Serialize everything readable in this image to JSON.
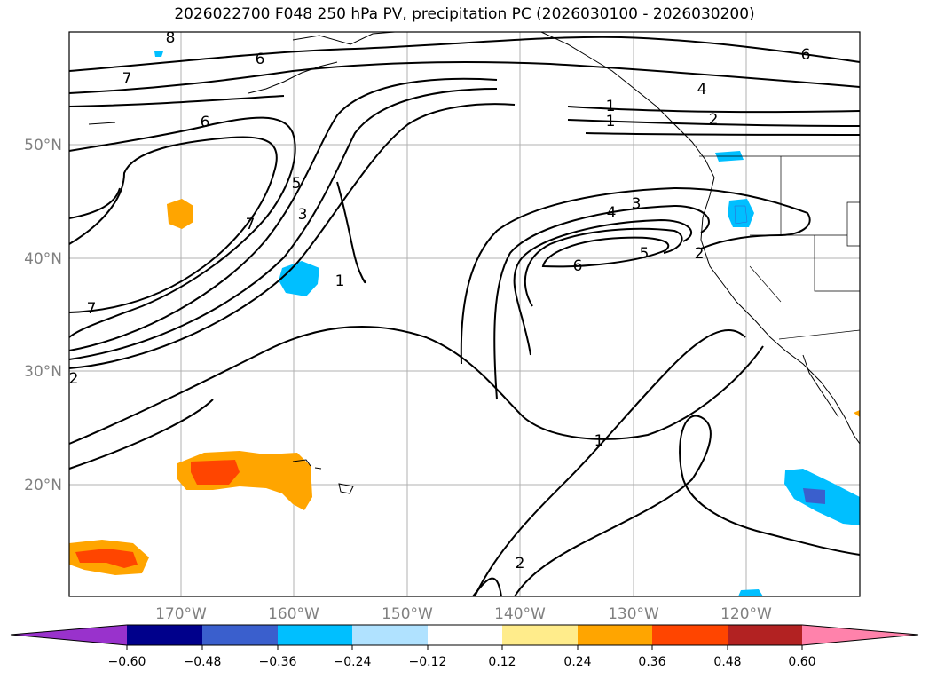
{
  "title": "2026022700 F048 250 hPa PV, precipitation PC (2026030100 - 2026030200)",
  "map": {
    "lat_labels": [
      "50°N",
      "40°N",
      "30°N",
      "20°N"
    ],
    "lon_labels": [
      "170°W",
      "160°W",
      "150°W",
      "140°W",
      "130°W",
      "120°W"
    ],
    "grid_color": "#b0b0b0",
    "contour_color": "#000000",
    "contour_labels": [
      "8",
      "6",
      "7",
      "6",
      "5",
      "3",
      "7",
      "1",
      "7",
      "6",
      "4",
      "2",
      "1",
      "1",
      "3",
      "4",
      "5",
      "6",
      "2",
      "1",
      "2",
      "2"
    ]
  },
  "colorbar": {
    "ticks": [
      "−0.60",
      "−0.48",
      "−0.36",
      "−0.24",
      "−0.12",
      "0.12",
      "0.24",
      "0.36",
      "0.48",
      "0.60"
    ],
    "colors": [
      "#9932cc",
      "#00008b",
      "#3a5fcd",
      "#00bfff",
      "#b0e2ff",
      "#ffffff",
      "#ffec8b",
      "#ffa500",
      "#ff4500",
      "#b22222",
      "#ff82ab"
    ]
  }
}
